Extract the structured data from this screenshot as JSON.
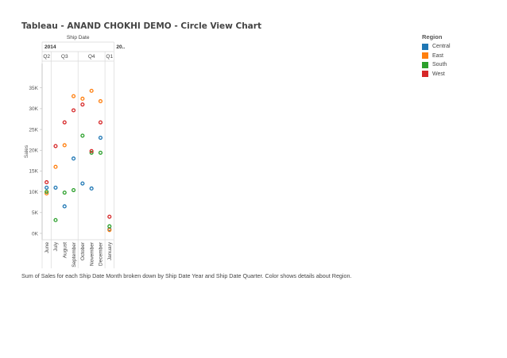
{
  "page": {
    "title": "Tableau - ANAND CHOKHI DEMO - Circle View Chart",
    "caption": "Sum of Sales for each Ship Date Month broken down by Ship Date Year and Ship Date Quarter.  Color shows details about Region."
  },
  "legend": {
    "title": "Region",
    "items": [
      {
        "label": "Central",
        "color": "#1f77b4"
      },
      {
        "label": "East",
        "color": "#ff7f0e"
      },
      {
        "label": "South",
        "color": "#2ca02c"
      },
      {
        "label": "West",
        "color": "#d62728"
      }
    ]
  },
  "chart_data": {
    "type": "scatter",
    "title": "",
    "xlabel": "Ship Date",
    "ylabel": "Sales",
    "ylim": [
      0,
      38000
    ],
    "yticks": [
      0,
      5000,
      10000,
      15000,
      20000,
      25000,
      30000,
      35000
    ],
    "ytick_labels": [
      "0K",
      "5K",
      "10K",
      "15K",
      "20K",
      "25K",
      "30K",
      "35K"
    ],
    "years": [
      {
        "label": "2014",
        "span": [
          0,
          8
        ]
      },
      {
        "label": "20..",
        "span": [
          8,
          9
        ]
      }
    ],
    "quarters": [
      {
        "label": "Q2",
        "span": [
          0,
          1
        ]
      },
      {
        "label": "Q3",
        "span": [
          1,
          4
        ]
      },
      {
        "label": "Q4",
        "span": [
          4,
          7
        ]
      },
      {
        "label": "Q1",
        "span": [
          7,
          8
        ]
      }
    ],
    "categories": [
      "June",
      "July",
      "August",
      "September",
      "October",
      "November",
      "December",
      "January"
    ],
    "grid": false,
    "legend_position": "right",
    "series": [
      {
        "name": "Central",
        "color": "#1f77b4",
        "values": [
          11000,
          11000,
          6500,
          18000,
          12000,
          10800,
          23000,
          1000
        ]
      },
      {
        "name": "East",
        "color": "#ff7f0e",
        "values": [
          9600,
          16000,
          21200,
          33000,
          32400,
          34300,
          31800,
          800
        ]
      },
      {
        "name": "South",
        "color": "#2ca02c",
        "values": [
          10000,
          3200,
          9800,
          10400,
          23500,
          19400,
          19400,
          1700
        ]
      },
      {
        "name": "West",
        "color": "#d62728",
        "values": [
          12300,
          21000,
          26700,
          29600,
          31000,
          19800,
          26700,
          4000
        ]
      }
    ]
  }
}
